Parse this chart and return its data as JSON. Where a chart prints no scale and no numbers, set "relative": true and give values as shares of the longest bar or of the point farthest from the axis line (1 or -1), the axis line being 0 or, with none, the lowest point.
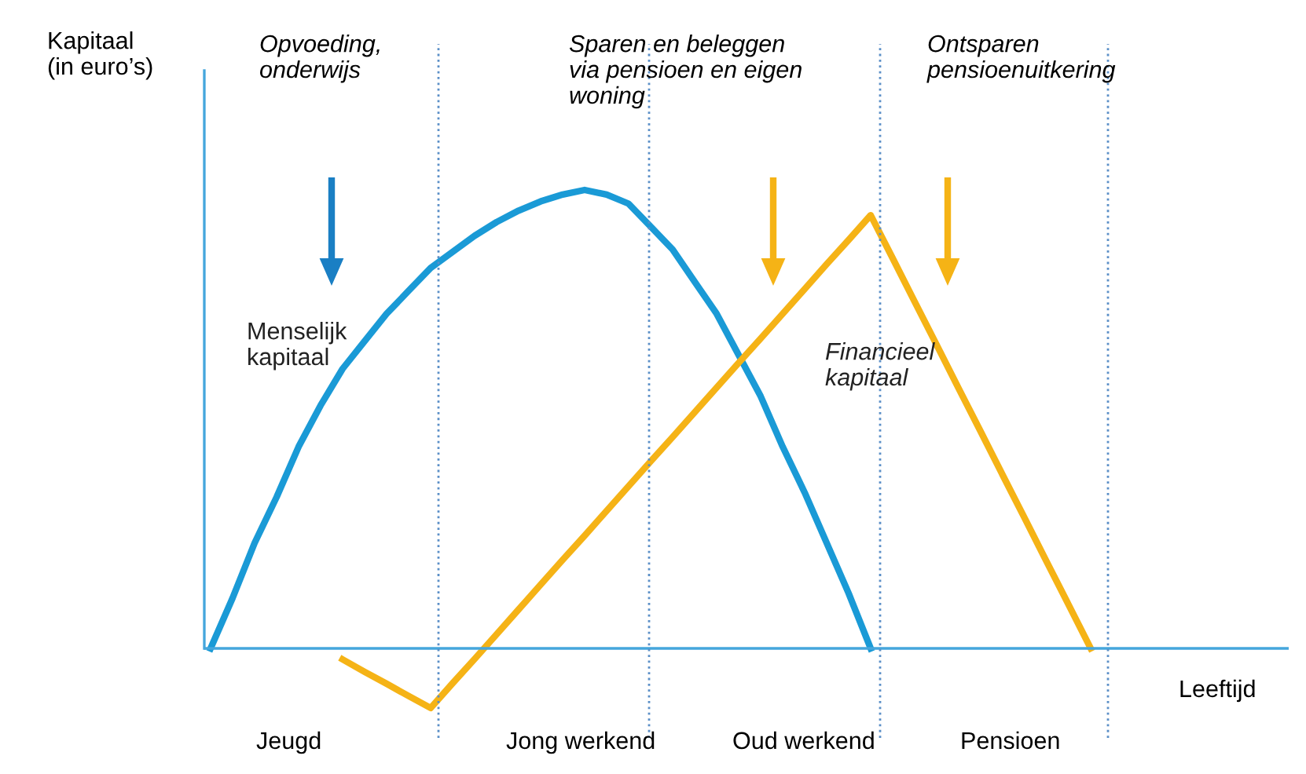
{
  "chart_data": {
    "type": "line",
    "relative": true,
    "xlabel": "Leeftijd",
    "legend": false,
    "marker": "none",
    "line_style": "solid",
    "categories": [
      null,
      null,
      null,
      null,
      null,
      null,
      null,
      null,
      null,
      null,
      null,
      null,
      null,
      null,
      null,
      null,
      null,
      null,
      null,
      null,
      null,
      null,
      null,
      null,
      null,
      null,
      null,
      null,
      null,
      null,
      null,
      null,
      null,
      null,
      null,
      null,
      null,
      null,
      null,
      null,
      null,
      null,
      null,
      null,
      null,
      null,
      null,
      null,
      null,
      null
    ],
    "series": [
      {
        "name": "Menselijk\nkapitaal",
        "color": "#1a9ad6",
        "values": [
          0,
          0.11,
          0.23,
          0.33,
          0.44,
          0.53,
          0.61,
          0.67,
          0.73,
          0.78,
          0.83,
          0.865,
          0.9,
          0.93,
          0.955,
          0.975,
          0.99,
          1.0,
          0.99,
          0.97,
          0.92,
          0.87,
          0.8,
          0.73,
          0.64,
          0.55,
          0.44,
          0.34,
          0.23,
          0.12,
          0,
          null,
          null,
          null,
          null,
          null,
          null,
          null,
          null,
          null,
          null,
          null,
          null,
          null,
          null,
          null,
          null,
          null,
          null,
          null
        ]
      },
      {
        "name": "Financieel\nkapitaal",
        "color": "#f5b316",
        "values": [
          null,
          null,
          null,
          null,
          null,
          null,
          -0.024,
          -0.051,
          -0.077,
          -0.104,
          -0.13,
          -0.076,
          -0.023,
          0.031,
          0.085,
          0.139,
          0.193,
          0.246,
          0.3,
          0.354,
          0.408,
          0.461,
          0.515,
          0.569,
          0.623,
          0.676,
          0.73,
          0.784,
          0.838,
          0.891,
          0.945,
          0.851,
          0.756,
          0.662,
          0.567,
          0.473,
          0.378,
          0.284,
          0.189,
          0.095,
          0,
          null,
          null,
          null,
          null,
          null,
          null,
          null,
          null,
          null
        ]
      }
    ],
    "ref_lines": [
      {
        "axis": "y",
        "value": 0,
        "label": null,
        "color": "#45a6dc",
        "line_style": "solid"
      }
    ],
    "annotations": [
      "Kapitaal\n(in euro’s)",
      "Opvoeding,\nonderwijs",
      "Sparen en beleggen\nvia pensioen en eigen\nwoning",
      "Ontsparen\npensioenuitkering",
      "Jeugd",
      "Jong werkend",
      "Oud werkend",
      "Pensioen"
    ]
  }
}
